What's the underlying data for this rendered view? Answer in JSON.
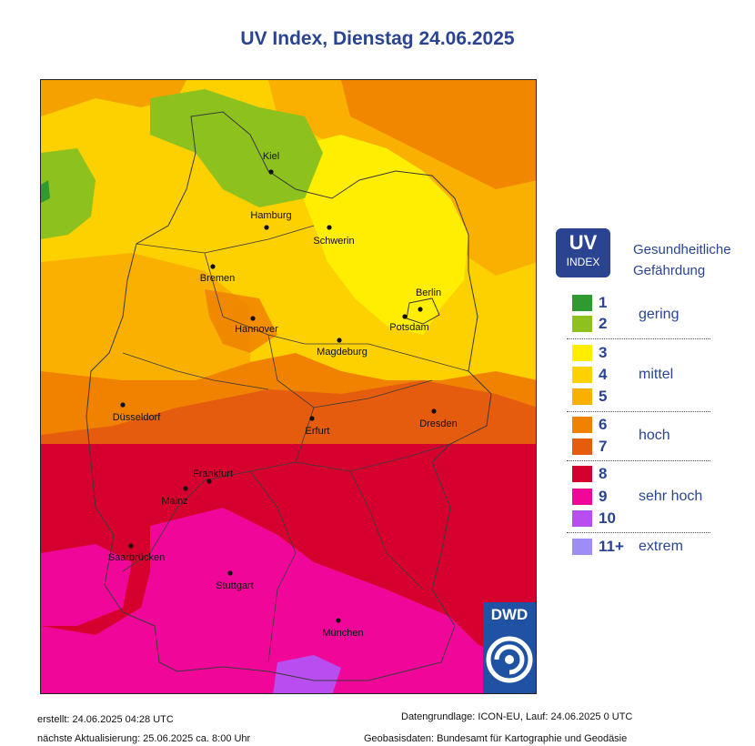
{
  "title": "UV Index, Dienstag 24.06.2025",
  "cities": [
    {
      "name": "Kiel"
    },
    {
      "name": "Hamburg"
    },
    {
      "name": "Schwerin"
    },
    {
      "name": "Bremen"
    },
    {
      "name": "Berlin"
    },
    {
      "name": "Potsdam"
    },
    {
      "name": "Hannover"
    },
    {
      "name": "Magdeburg"
    },
    {
      "name": "Düsseldorf"
    },
    {
      "name": "Erfurt"
    },
    {
      "name": "Dresden"
    },
    {
      "name": "Frankfurt"
    },
    {
      "name": "Mainz"
    },
    {
      "name": "Saarbrücken"
    },
    {
      "name": "Stuttgart"
    },
    {
      "name": "München"
    }
  ],
  "legend": {
    "badge_big": "UV",
    "badge_small": "INDEX",
    "heading_line1": "Gesundheitliche",
    "heading_line2": "Gefährdung",
    "levels": [
      {
        "value": "1",
        "color": "#2f9a2f"
      },
      {
        "value": "2",
        "color": "#8cc11e"
      },
      {
        "value": "3",
        "color": "#ffee00"
      },
      {
        "value": "4",
        "color": "#fdd000"
      },
      {
        "value": "5",
        "color": "#f9b000"
      },
      {
        "value": "6",
        "color": "#f08200"
      },
      {
        "value": "7",
        "color": "#e55c0f"
      },
      {
        "value": "8",
        "color": "#d6002f"
      },
      {
        "value": "9",
        "color": "#f0079a"
      },
      {
        "value": "10",
        "color": "#b84ef0"
      },
      {
        "value": "11+",
        "color": "#a08cf5"
      }
    ],
    "categories": [
      "gering",
      "mittel",
      "hoch",
      "sehr hoch",
      "extrem"
    ]
  },
  "logo_text": "DWD",
  "footer": {
    "created": "erstellt: 24.06.2025 04:28 UTC",
    "next_update": "nächste Aktualisierung:  25.06.2025 ca. 8:00 Uhr",
    "data_basis": "Datengrundlage: ICON-EU, Lauf: 24.06.2025 0 UTC",
    "geo_basis": "Geobasisdaten: Bundesamt für Kartographie und Geodäsie"
  }
}
